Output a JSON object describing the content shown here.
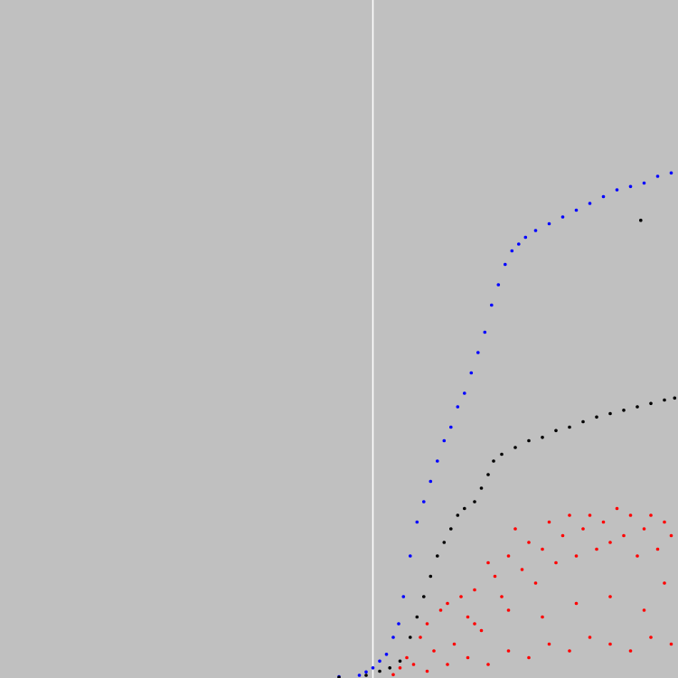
{
  "chart_data": {
    "type": "scatter",
    "xlim": [
      0,
      100
    ],
    "ylim": [
      0,
      100
    ],
    "grid": false,
    "legend": "none",
    "background": "#c0c0c0",
    "reference_line": {
      "x": 55,
      "color": "#ffffff"
    },
    "series": [
      {
        "color": "#0000ff",
        "marker": "dot",
        "points": [
          [
            50,
            0.2
          ],
          [
            53,
            0.4
          ],
          [
            54,
            0.9
          ],
          [
            55,
            1.5
          ],
          [
            56,
            2.5
          ],
          [
            57,
            3.5
          ],
          [
            58,
            6
          ],
          [
            58.8,
            8
          ],
          [
            59.5,
            12
          ],
          [
            60.5,
            18
          ],
          [
            61.5,
            23
          ],
          [
            62.5,
            26
          ],
          [
            63.5,
            29
          ],
          [
            64.5,
            32
          ],
          [
            65.5,
            35
          ],
          [
            66.5,
            37
          ],
          [
            67.5,
            40
          ],
          [
            68.5,
            42
          ],
          [
            69.5,
            45
          ],
          [
            70.5,
            48
          ],
          [
            71.5,
            51
          ],
          [
            72.5,
            55
          ],
          [
            73.5,
            58
          ],
          [
            74.5,
            61
          ],
          [
            75.5,
            63
          ],
          [
            76.5,
            64
          ],
          [
            77.5,
            65
          ],
          [
            79,
            66
          ],
          [
            81,
            67
          ],
          [
            83,
            68
          ],
          [
            85,
            69
          ],
          [
            87,
            70
          ],
          [
            89,
            71
          ],
          [
            91,
            72
          ],
          [
            93,
            72.5
          ],
          [
            95,
            73
          ],
          [
            97,
            74
          ],
          [
            99,
            74.5
          ]
        ]
      },
      {
        "color": "#000000",
        "marker": "dot",
        "points": [
          [
            50,
            0.1
          ],
          [
            54,
            0.4
          ],
          [
            56,
            1.0
          ],
          [
            57.5,
            1.5
          ],
          [
            59,
            2.5
          ],
          [
            60.5,
            6
          ],
          [
            61.5,
            9
          ],
          [
            62.5,
            12
          ],
          [
            63.5,
            15
          ],
          [
            64.5,
            18
          ],
          [
            65.5,
            20
          ],
          [
            66.5,
            22
          ],
          [
            67.5,
            24
          ],
          [
            68.5,
            25
          ],
          [
            70,
            26
          ],
          [
            71,
            28
          ],
          [
            72,
            30
          ],
          [
            72.8,
            32
          ],
          [
            74,
            33
          ],
          [
            76,
            34
          ],
          [
            78,
            35
          ],
          [
            80,
            35.5
          ],
          [
            82,
            36.5
          ],
          [
            84,
            37
          ],
          [
            86,
            37.8
          ],
          [
            88,
            38.5
          ],
          [
            90,
            39
          ],
          [
            92,
            39.5
          ],
          [
            94,
            40
          ],
          [
            96,
            40.5
          ],
          [
            98,
            41
          ],
          [
            99.5,
            41.3
          ],
          [
            94.5,
            67.5
          ]
        ]
      },
      {
        "color": "#ff0000",
        "marker": "dot",
        "points": [
          [
            58,
            0.5
          ],
          [
            59,
            1.5
          ],
          [
            60,
            3
          ],
          [
            61,
            2
          ],
          [
            62,
            6
          ],
          [
            63,
            8
          ],
          [
            64,
            4
          ],
          [
            65,
            10
          ],
          [
            66,
            11
          ],
          [
            67,
            5
          ],
          [
            68,
            12
          ],
          [
            69,
            9
          ],
          [
            70,
            13
          ],
          [
            71,
            7
          ],
          [
            72,
            17
          ],
          [
            73,
            15
          ],
          [
            74,
            12
          ],
          [
            75,
            18
          ],
          [
            76,
            22
          ],
          [
            77,
            16
          ],
          [
            78,
            20
          ],
          [
            79,
            14
          ],
          [
            80,
            19
          ],
          [
            81,
            23
          ],
          [
            82,
            17
          ],
          [
            83,
            21
          ],
          [
            84,
            24
          ],
          [
            85,
            18
          ],
          [
            86,
            22
          ],
          [
            87,
            24
          ],
          [
            88,
            19
          ],
          [
            89,
            23
          ],
          [
            90,
            20
          ],
          [
            91,
            25
          ],
          [
            92,
            21
          ],
          [
            93,
            24
          ],
          [
            94,
            18
          ],
          [
            95,
            22
          ],
          [
            96,
            24
          ],
          [
            97,
            19
          ],
          [
            98,
            23
          ],
          [
            99,
            21
          ],
          [
            63,
            1
          ],
          [
            66,
            2
          ],
          [
            69,
            3
          ],
          [
            72,
            2
          ],
          [
            75,
            4
          ],
          [
            78,
            3
          ],
          [
            81,
            5
          ],
          [
            84,
            4
          ],
          [
            87,
            6
          ],
          [
            90,
            5
          ],
          [
            93,
            4
          ],
          [
            96,
            6
          ],
          [
            99,
            5
          ],
          [
            70,
            8
          ],
          [
            75,
            10
          ],
          [
            80,
            9
          ],
          [
            85,
            11
          ],
          [
            90,
            12
          ],
          [
            95,
            10
          ],
          [
            98,
            14
          ]
        ]
      }
    ]
  }
}
